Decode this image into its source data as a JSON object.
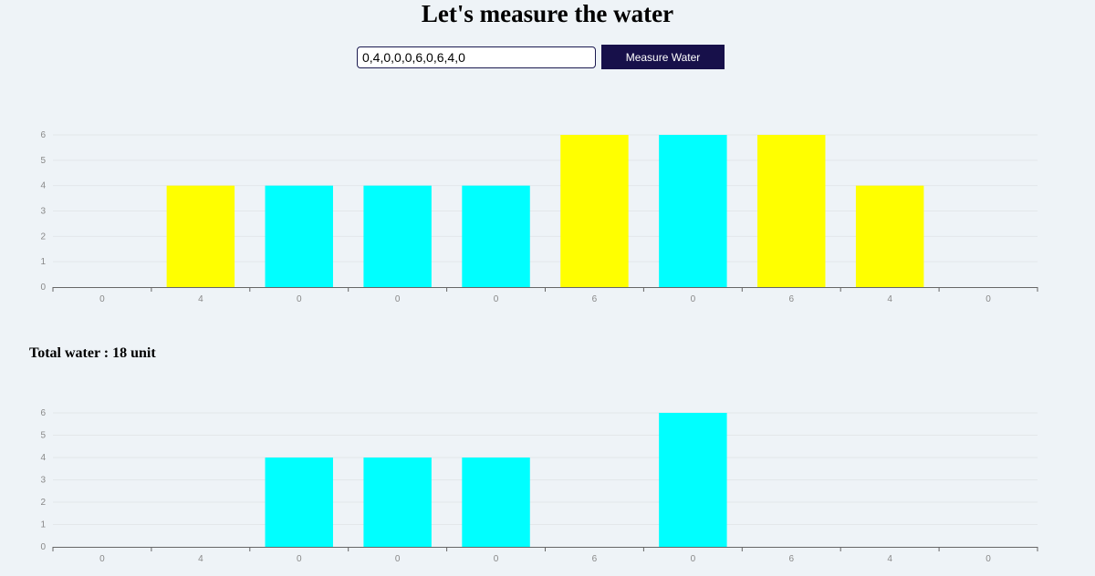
{
  "page": {
    "title": "Let's measure the water",
    "input_value": "0,4,0,0,0,6,0,6,4,0",
    "button_label": "Measure Water",
    "total_label": "Total water : 18 unit"
  },
  "colors": {
    "wall": "#ffff00",
    "water": "#00ffff",
    "button_bg": "#17104a",
    "background": "#eef3f7"
  },
  "chart_data": [
    {
      "type": "bar",
      "categories": [
        "0",
        "4",
        "0",
        "0",
        "0",
        "6",
        "0",
        "6",
        "4",
        "0"
      ],
      "ylim": [
        0,
        6
      ],
      "yticks": [
        0,
        1,
        2,
        3,
        4,
        5,
        6
      ],
      "grid": true,
      "values": [
        0,
        4,
        4,
        4,
        4,
        6,
        6,
        6,
        4,
        0
      ],
      "bar_colors": [
        "wall",
        "wall",
        "water",
        "water",
        "water",
        "wall",
        "water",
        "wall",
        "wall",
        "wall"
      ]
    },
    {
      "type": "bar",
      "categories": [
        "0",
        "4",
        "0",
        "0",
        "0",
        "6",
        "0",
        "6",
        "4",
        "0"
      ],
      "ylim": [
        0,
        6
      ],
      "yticks": [
        0,
        1,
        2,
        3,
        4,
        5,
        6
      ],
      "grid": true,
      "values": [
        0,
        0,
        4,
        4,
        4,
        0,
        6,
        0,
        0,
        0
      ],
      "bar_colors": [
        "water",
        "water",
        "water",
        "water",
        "water",
        "water",
        "water",
        "water",
        "water",
        "water"
      ]
    }
  ]
}
